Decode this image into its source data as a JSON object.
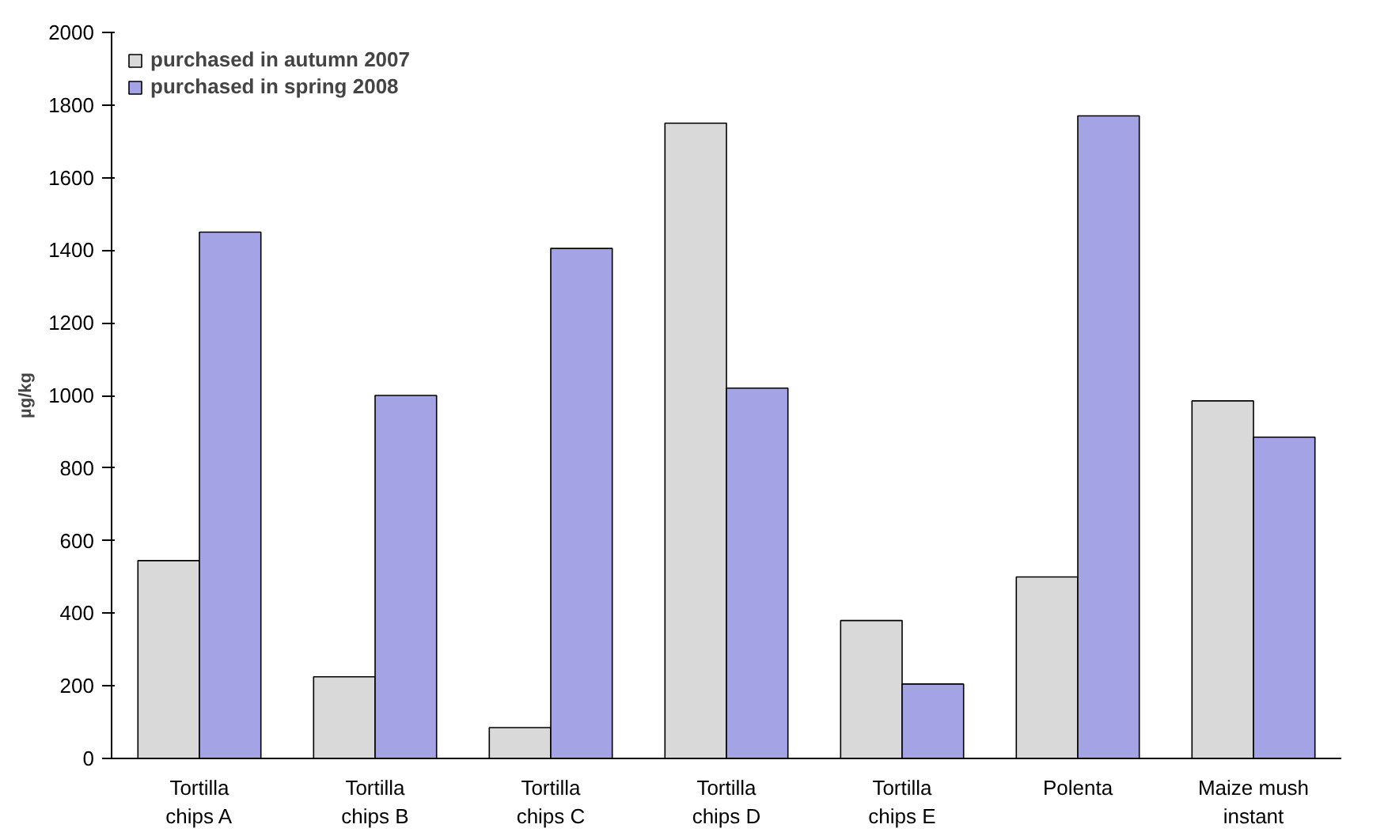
{
  "chart_data": {
    "type": "bar",
    "ylabel": "µg/kg",
    "categories": [
      "Tortilla chips A",
      "Tortilla chips B",
      "Tortilla chips C",
      "Tortilla chips D",
      "Tortilla chips E",
      "Polenta",
      "Maize mush instant"
    ],
    "series": [
      {
        "name": "purchased in autumn 2007",
        "color": "#d9d9d9",
        "values": [
          545,
          225,
          85,
          1750,
          380,
          500,
          985
        ]
      },
      {
        "name": "purchased in spring 2008",
        "color": "#a3a3e6",
        "values": [
          1450,
          1000,
          1405,
          1020,
          205,
          1770,
          885
        ]
      }
    ],
    "ylim": [
      0,
      2000
    ],
    "yticks": [
      0,
      200,
      400,
      600,
      800,
      1000,
      1200,
      1400,
      1600,
      1800,
      2000
    ],
    "grid": false,
    "legend": "top left"
  }
}
